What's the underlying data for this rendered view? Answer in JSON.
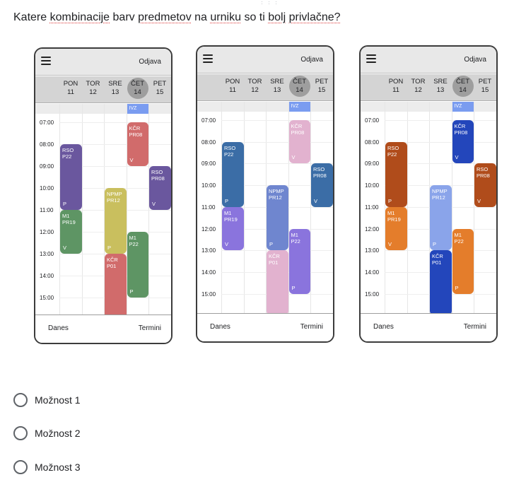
{
  "question": {
    "words": [
      "Katere",
      "kombinacije",
      "barv",
      "predmetov",
      "na",
      "urniku",
      "so",
      "ti",
      "bolj",
      "privlačne?"
    ],
    "flagged": [
      false,
      true,
      false,
      true,
      false,
      true,
      false,
      false,
      true,
      true
    ]
  },
  "phone": {
    "logout_label": "Odjava",
    "today_label": "Danes",
    "terms_label": "Termini",
    "days": [
      {
        "name": "PON",
        "date": "11"
      },
      {
        "name": "TOR",
        "date": "12"
      },
      {
        "name": "SRE",
        "date": "13"
      },
      {
        "name": "ČET",
        "date": "14",
        "active": true
      },
      {
        "name": "PET",
        "date": "15"
      }
    ],
    "times": [
      "07:00",
      "08:00",
      "09:00",
      "10:00",
      "11:00",
      "12:00",
      "13:00",
      "14:00",
      "15:00"
    ]
  },
  "events": [
    {
      "day": 3,
      "start": 6.5,
      "end": 7.0,
      "title": "IVZ",
      "ivz": true
    },
    {
      "day": 3,
      "start": 7.0,
      "end": 9.0,
      "title": "KČR\nPR08",
      "suffix": "V"
    },
    {
      "day": 0,
      "start": 8.0,
      "end": 11.0,
      "title": "RSO\nP22",
      "suffix": "P"
    },
    {
      "day": 4,
      "start": 9.0,
      "end": 11.0,
      "title": "RSO\nPR08",
      "suffix": "V"
    },
    {
      "day": 2,
      "start": 10.0,
      "end": 13.0,
      "title": "NPMP\nPR12",
      "suffix": "P"
    },
    {
      "day": 0,
      "start": 11.0,
      "end": 13.0,
      "title": "M1\nPR19",
      "suffix": "V"
    },
    {
      "day": 3,
      "start": 12.0,
      "end": 15.0,
      "title": "M1\nP22",
      "suffix": "P"
    },
    {
      "day": 2,
      "start": 13.0,
      "end": 16.0,
      "title": "KČR\nP01",
      "suffix": ""
    }
  ],
  "schemes": [
    {
      "ivz": "#7a9cf0",
      "kcr_pr08": "#d16b6b",
      "rso_p22": "#6a579e",
      "rso_pr08": "#6a579e",
      "npmp": "#c9bf5e",
      "m1_pr19": "#5e9564",
      "m1_p22": "#5e9564",
      "kcr_p01": "#d16b6b"
    },
    {
      "ivz": "#7a9cf0",
      "kcr_pr08": "#e2b2cf",
      "rso_p22": "#3b6da6",
      "rso_pr08": "#3b6da6",
      "npmp": "#6f86cf",
      "m1_pr19": "#8a74dd",
      "m1_p22": "#8a74dd",
      "kcr_p01": "#e2b2cf"
    },
    {
      "ivz": "#7a9cf0",
      "kcr_pr08": "#2346bb",
      "rso_p22": "#b04c1b",
      "rso_pr08": "#b04c1b",
      "npmp": "#8aa4ea",
      "m1_pr19": "#e47d2b",
      "m1_p22": "#e47d2b",
      "kcr_p01": "#2346bb"
    }
  ],
  "options": [
    {
      "label": "Možnost 1"
    },
    {
      "label": "Možnost 2"
    },
    {
      "label": "Možnost 3"
    }
  ]
}
